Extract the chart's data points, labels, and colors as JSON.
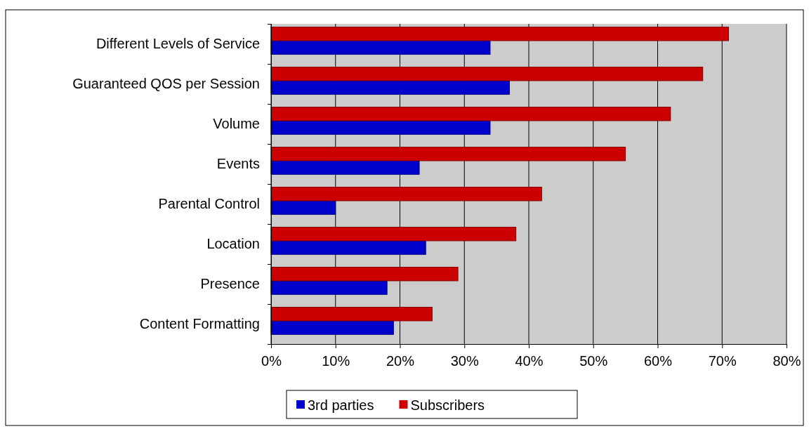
{
  "chart_data": {
    "type": "bar",
    "orientation": "horizontal",
    "categories": [
      "Different Levels of Service",
      "Guaranteed QOS per Session",
      "Volume",
      "Events",
      "Parental Control",
      "Location",
      "Presence",
      "Content Formatting"
    ],
    "series": [
      {
        "name": "3rd parties",
        "color": "#0000cc",
        "values": [
          34,
          37,
          34,
          23,
          10,
          24,
          18,
          19
        ]
      },
      {
        "name": "Subscribers",
        "color": "#cc0000",
        "values": [
          71,
          67,
          62,
          55,
          42,
          38,
          29,
          25
        ]
      }
    ],
    "xlim": [
      0,
      80
    ],
    "xticks": [
      {
        "value": 0,
        "label": "0%"
      },
      {
        "value": 10,
        "label": "10%"
      },
      {
        "value": 20,
        "label": "20%"
      },
      {
        "value": 30,
        "label": "30%"
      },
      {
        "value": 40,
        "label": "40%"
      },
      {
        "value": 50,
        "label": "50%"
      },
      {
        "value": 60,
        "label": "60%"
      },
      {
        "value": 70,
        "label": "70%"
      },
      {
        "value": 80,
        "label": "80%"
      }
    ],
    "grid": "x",
    "legend": "bottom"
  }
}
